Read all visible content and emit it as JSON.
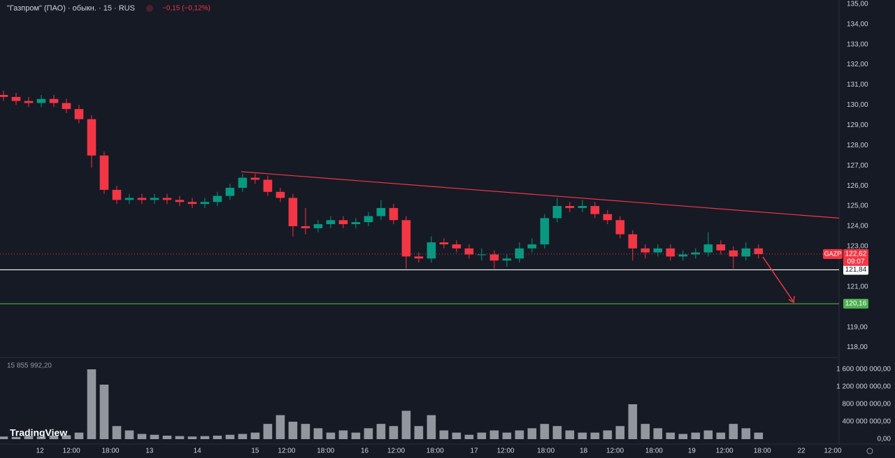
{
  "chart_data": {
    "type": "candlestick",
    "title": "\"Газпром\" (ПАО) · обыкн. · 15 · RUS",
    "change": "−0,15 (−0,12%)",
    "volume_label": "15 855 992,20",
    "brand": "TradingView",
    "up_color": "#089981",
    "down_color": "#f23645",
    "volume_color": "#b2b5be",
    "grid": false,
    "xlim": [
      0,
      66.4
    ],
    "xticks": [
      {
        "value": 2.9,
        "label": "12"
      },
      {
        "value": 5.4,
        "label": "12:00"
      },
      {
        "value": 8.5,
        "label": "18:00"
      },
      {
        "value": 11.6,
        "label": "13"
      },
      {
        "value": 15.4,
        "label": "14"
      },
      {
        "value": 20,
        "label": "15"
      },
      {
        "value": 22.5,
        "label": "12:00"
      },
      {
        "value": 25.6,
        "label": "18:00"
      },
      {
        "value": 28.7,
        "label": "16"
      },
      {
        "value": 31.2,
        "label": "12:00"
      },
      {
        "value": 34.3,
        "label": "18:00"
      },
      {
        "value": 37.4,
        "label": "17"
      },
      {
        "value": 39.9,
        "label": "12:00"
      },
      {
        "value": 43.1,
        "label": "18:00"
      },
      {
        "value": 46.1,
        "label": "18"
      },
      {
        "value": 48.6,
        "label": "12:00"
      },
      {
        "value": 51.7,
        "label": "18:00"
      },
      {
        "value": 54.7,
        "label": "19"
      },
      {
        "value": 57.3,
        "label": "12:00"
      },
      {
        "value": 60.3,
        "label": "18:00"
      },
      {
        "value": 63.4,
        "label": "22"
      },
      {
        "value": 65.9,
        "label": "12:00"
      }
    ],
    "ylim": [
      117.5,
      135.2
    ],
    "yticks": [
      {
        "value": 135,
        "label": "135,00"
      },
      {
        "value": 134,
        "label": "134,00"
      },
      {
        "value": 133,
        "label": "133,00"
      },
      {
        "value": 132,
        "label": "132,00"
      },
      {
        "value": 131,
        "label": "131,00"
      },
      {
        "value": 130,
        "label": "130,00"
      },
      {
        "value": 129,
        "label": "129,00"
      },
      {
        "value": 128,
        "label": "128,00"
      },
      {
        "value": 127,
        "label": "127,00"
      },
      {
        "value": 126,
        "label": "126,00"
      },
      {
        "value": 125,
        "label": "125,00"
      },
      {
        "value": 124,
        "label": "124,00"
      },
      {
        "value": 123,
        "label": "123,00"
      },
      {
        "value": 121,
        "label": "121,00"
      },
      {
        "value": 119,
        "label": "119,00"
      },
      {
        "value": 118,
        "label": "118,00"
      }
    ],
    "y2lim": [
      0,
      1800000000
    ],
    "y2ticks": [
      {
        "value": 1600000000,
        "label": "1 600 000 000,00"
      },
      {
        "value": 1200000000,
        "label": "1 200 000 000,00"
      },
      {
        "value": 800000000,
        "label": "800 000 000,00"
      },
      {
        "value": 400000000,
        "label": "400 000 000,00"
      },
      {
        "value": 0,
        "label": "0,00"
      }
    ],
    "candles": {
      "x": [
        0,
        1,
        2,
        3,
        4,
        5,
        6,
        7,
        8,
        9,
        10,
        11,
        12,
        13,
        14,
        15,
        16,
        17,
        18,
        19,
        20,
        21,
        22,
        23,
        24,
        25,
        26,
        27,
        28,
        29,
        30,
        31,
        32,
        33,
        34,
        35,
        36,
        37,
        38,
        39,
        40,
        41,
        42,
        43,
        44,
        45,
        46,
        47,
        48,
        49,
        50,
        51,
        52,
        53,
        54,
        55,
        56,
        57,
        58,
        59,
        60
      ],
      "open": [
        130.5,
        130.4,
        130.2,
        130.1,
        130.3,
        130.1,
        129.8,
        129.3,
        127.5,
        125.8,
        125.3,
        125.4,
        125.3,
        125.4,
        125.3,
        125.2,
        125.1,
        125.2,
        125.5,
        125.9,
        126.4,
        126.3,
        125.7,
        125.4,
        124.0,
        123.9,
        124.1,
        124.3,
        124.1,
        124.2,
        124.5,
        124.9,
        124.3,
        122.5,
        122.4,
        123.2,
        123.1,
        122.9,
        122.6,
        122.6,
        122.3,
        122.4,
        122.9,
        123.1,
        124.4,
        125.0,
        124.9,
        125.0,
        124.6,
        124.3,
        123.6,
        122.9,
        122.7,
        122.9,
        122.5,
        122.6,
        122.7,
        123.1,
        122.8,
        122.5,
        122.9
      ],
      "high": [
        130.7,
        130.6,
        130.4,
        130.5,
        130.5,
        130.3,
        130.0,
        129.5,
        127.7,
        126.0,
        125.6,
        125.6,
        125.6,
        125.6,
        125.5,
        125.4,
        125.4,
        125.7,
        126.1,
        126.6,
        126.6,
        126.5,
        125.9,
        125.6,
        124.9,
        124.3,
        124.5,
        124.5,
        124.4,
        124.7,
        125.3,
        125.1,
        124.5,
        122.7,
        123.5,
        123.4,
        123.3,
        123.1,
        122.9,
        122.8,
        122.6,
        123.2,
        123.4,
        124.6,
        125.4,
        125.2,
        125.3,
        125.2,
        124.8,
        124.5,
        123.8,
        123.1,
        123.1,
        123.1,
        122.8,
        122.9,
        123.7,
        123.3,
        123.0,
        123.2,
        123.1
      ],
      "low": [
        130.2,
        130.0,
        129.9,
        129.9,
        129.9,
        129.6,
        129.1,
        126.9,
        125.6,
        125.1,
        125.1,
        125.1,
        125.1,
        125.1,
        125.0,
        124.9,
        124.9,
        125.0,
        125.3,
        125.7,
        126.1,
        125.5,
        125.2,
        123.5,
        123.6,
        123.7,
        123.9,
        123.9,
        123.9,
        124.0,
        124.3,
        124.1,
        121.9,
        122.2,
        122.2,
        122.9,
        122.7,
        122.4,
        122.3,
        121.9,
        122.0,
        122.2,
        122.7,
        122.9,
        124.2,
        124.7,
        124.7,
        124.4,
        124.1,
        123.4,
        122.3,
        122.4,
        122.5,
        122.3,
        122.3,
        122.4,
        122.5,
        122.6,
        121.9,
        122.3,
        122.4
      ],
      "close": [
        130.4,
        130.2,
        130.1,
        130.3,
        130.1,
        129.8,
        129.3,
        127.5,
        125.8,
        125.3,
        125.4,
        125.3,
        125.4,
        125.3,
        125.2,
        125.1,
        125.2,
        125.5,
        125.9,
        126.4,
        126.3,
        125.7,
        125.4,
        124.0,
        123.9,
        124.1,
        124.3,
        124.1,
        124.2,
        124.5,
        124.9,
        124.3,
        122.5,
        122.4,
        123.2,
        123.1,
        122.9,
        122.6,
        122.6,
        122.3,
        122.4,
        122.9,
        123.1,
        124.4,
        125.0,
        124.9,
        125.0,
        124.6,
        124.3,
        123.6,
        122.9,
        122.7,
        122.9,
        122.5,
        122.6,
        122.7,
        123.1,
        122.8,
        122.5,
        122.9,
        122.62
      ],
      "volume": [
        60000000,
        50000000,
        70000000,
        60000000,
        80000000,
        90000000,
        150000000,
        1600000000,
        1250000000,
        300000000,
        200000000,
        120000000,
        100000000,
        80000000,
        70000000,
        60000000,
        70000000,
        80000000,
        100000000,
        120000000,
        150000000,
        350000000,
        550000000,
        400000000,
        350000000,
        250000000,
        150000000,
        200000000,
        150000000,
        250000000,
        350000000,
        300000000,
        650000000,
        300000000,
        550000000,
        200000000,
        150000000,
        100000000,
        150000000,
        200000000,
        150000000,
        200000000,
        250000000,
        350000000,
        300000000,
        200000000,
        150000000,
        150000000,
        200000000,
        300000000,
        800000000,
        350000000,
        250000000,
        150000000,
        120000000,
        150000000,
        200000000,
        150000000,
        350000000,
        250000000,
        150000000
      ]
    },
    "trendline": {
      "x": [
        18.9,
        66.4
      ],
      "y": [
        126.7,
        124.4
      ],
      "color": "#f23645"
    },
    "levels": [
      {
        "value": 121.84,
        "label": "121,84",
        "color": "#ffffff"
      },
      {
        "value": 120.16,
        "label": "120,16",
        "color": "#4caf50"
      }
    ],
    "last_price": {
      "symbol": "GAZP",
      "value": 122.62,
      "label": "122,62",
      "countdown": "09:07",
      "color": "#f23645"
    }
  }
}
